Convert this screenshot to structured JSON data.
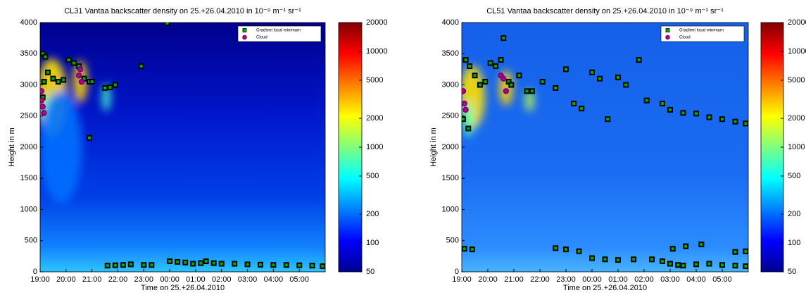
{
  "chart_data": [
    {
      "type": "scatter",
      "title": "CL31 Vantaa backscatter density on 25.+26.04.2010 in 10⁻⁹ m⁻¹ sr⁻¹",
      "xlabel": "Time on 25.+26.04.2010",
      "ylabel": "Height in m",
      "xlim": [
        19,
        30
      ],
      "xticks": [
        {
          "value": 19,
          "label": "19:00"
        },
        {
          "value": 20,
          "label": "20:00"
        },
        {
          "value": 21,
          "label": "21:00"
        },
        {
          "value": 22,
          "label": "22:00"
        },
        {
          "value": 23,
          "label": "23:00"
        },
        {
          "value": 24,
          "label": "00:00"
        },
        {
          "value": 25,
          "label": "01:00"
        },
        {
          "value": 26,
          "label": "02:00"
        },
        {
          "value": 27,
          "label": "03:00"
        },
        {
          "value": 28,
          "label": "04:00"
        },
        {
          "value": 29,
          "label": "05:00"
        }
      ],
      "ylim": [
        0,
        4000
      ],
      "yticks": [
        0,
        500,
        1000,
        1500,
        2000,
        2500,
        3000,
        3500,
        4000
      ],
      "legend": "upper right",
      "colorbar": {
        "scale": "log",
        "lim": [
          50,
          20000
        ],
        "ticks": [
          50,
          100,
          200,
          500,
          1000,
          2000,
          5000,
          10000,
          20000
        ]
      },
      "series": [
        {
          "name": "Gradient local minimum",
          "color": "#00b000",
          "marker": "square",
          "x": [
            19.1,
            19.2,
            19.1,
            19.15,
            19.3,
            19.5,
            19.7,
            19.9,
            20.1,
            20.3,
            20.5,
            20.7,
            20.9,
            21.0,
            21.5,
            21.7,
            21.9,
            22.9,
            20.9,
            23.9,
            21.6,
            21.9,
            22.2,
            22.5,
            23.0,
            23.3,
            24.0,
            24.3,
            24.6,
            24.9,
            25.2,
            25.4,
            25.7,
            26.0,
            26.5,
            27.0,
            27.5,
            28.0,
            28.5,
            29.0,
            29.5,
            29.9
          ],
          "values": [
            3500,
            3450,
            2800,
            3050,
            3200,
            3100,
            3050,
            3080,
            3400,
            3350,
            3300,
            3100,
            3050,
            3050,
            2950,
            2960,
            3000,
            3300,
            2150,
            3990,
            100,
            105,
            110,
            120,
            110,
            110,
            170,
            160,
            150,
            130,
            140,
            170,
            140,
            130,
            130,
            120,
            115,
            110,
            110,
            105,
            100,
            90
          ]
        },
        {
          "name": "Cloud",
          "color": "#c0005a",
          "marker": "circle",
          "x": [
            19.05,
            19.1,
            19.15,
            19.05,
            20.5,
            20.6,
            20.55
          ],
          "values": [
            2750,
            2650,
            2550,
            2900,
            3150,
            3050,
            3250
          ]
        }
      ]
    },
    {
      "type": "scatter",
      "title": "CL51 Vantaa backscatter density on 25.+26.04.2010 in 10⁻⁹ m⁻¹ sr⁻¹",
      "xlabel": "Time on 25.+26.04.2010",
      "ylabel": "Height in m",
      "xlim": [
        19,
        30
      ],
      "xticks": [
        {
          "value": 19,
          "label": "19:00"
        },
        {
          "value": 20,
          "label": "20:00"
        },
        {
          "value": 21,
          "label": "21:00"
        },
        {
          "value": 22,
          "label": "22:00"
        },
        {
          "value": 23,
          "label": "23:00"
        },
        {
          "value": 24,
          "label": "00:00"
        },
        {
          "value": 25,
          "label": "01:00"
        },
        {
          "value": 26,
          "label": "02:00"
        },
        {
          "value": 27,
          "label": "03:00"
        },
        {
          "value": 28,
          "label": "04:00"
        },
        {
          "value": 29,
          "label": "05:00"
        }
      ],
      "ylim": [
        0,
        4000
      ],
      "yticks": [
        0,
        500,
        1000,
        1500,
        2000,
        2500,
        3000,
        3500,
        4000
      ],
      "legend": "upper right",
      "colorbar": {
        "scale": "log",
        "lim": [
          50,
          20000
        ],
        "ticks": [
          50,
          100,
          200,
          500,
          1000,
          2000,
          5000,
          10000,
          20000
        ]
      },
      "series": [
        {
          "name": "Gradient local minimum",
          "color": "#00b000",
          "marker": "square",
          "x": [
            19.15,
            19.3,
            19.5,
            19.7,
            19.9,
            20.1,
            20.3,
            20.5,
            20.6,
            20.8,
            20.9,
            21.2,
            21.5,
            21.7,
            22.1,
            22.6,
            19.25,
            19.05,
            23.0,
            23.3,
            23.6,
            24.0,
            24.3,
            24.6,
            25.0,
            25.3,
            25.8,
            26.1,
            26.7,
            27.0,
            27.5,
            28.0,
            28.5,
            29.0,
            29.5,
            29.9,
            19.1,
            19.4,
            22.6,
            23.0,
            23.5,
            24.0,
            24.5,
            25.0,
            25.6,
            26.3,
            26.7,
            27.0,
            27.3,
            27.5,
            28.0,
            28.5,
            29.0,
            29.5,
            29.9,
            27.1,
            27.6,
            28.2,
            29.5,
            29.9
          ],
          "values": [
            3400,
            3300,
            3150,
            3000,
            3050,
            3350,
            3300,
            3400,
            3750,
            3050,
            3000,
            3150,
            2900,
            2900,
            3050,
            2950,
            2300,
            2450,
            3250,
            2700,
            2620,
            3200,
            3100,
            2450,
            3120,
            3000,
            3400,
            2750,
            2700,
            2600,
            2550,
            2540,
            2480,
            2450,
            2410,
            2380,
            370,
            360,
            380,
            360,
            330,
            220,
            200,
            190,
            200,
            200,
            170,
            130,
            110,
            100,
            120,
            130,
            110,
            100,
            90,
            370,
            410,
            440,
            320,
            330
          ]
        },
        {
          "name": "Cloud",
          "color": "#c0005a",
          "marker": "circle",
          "x": [
            19.05,
            19.1,
            19.15,
            20.5,
            20.6,
            20.7
          ],
          "values": [
            2900,
            2700,
            2600,
            3150,
            3100,
            2900
          ]
        }
      ]
    }
  ]
}
